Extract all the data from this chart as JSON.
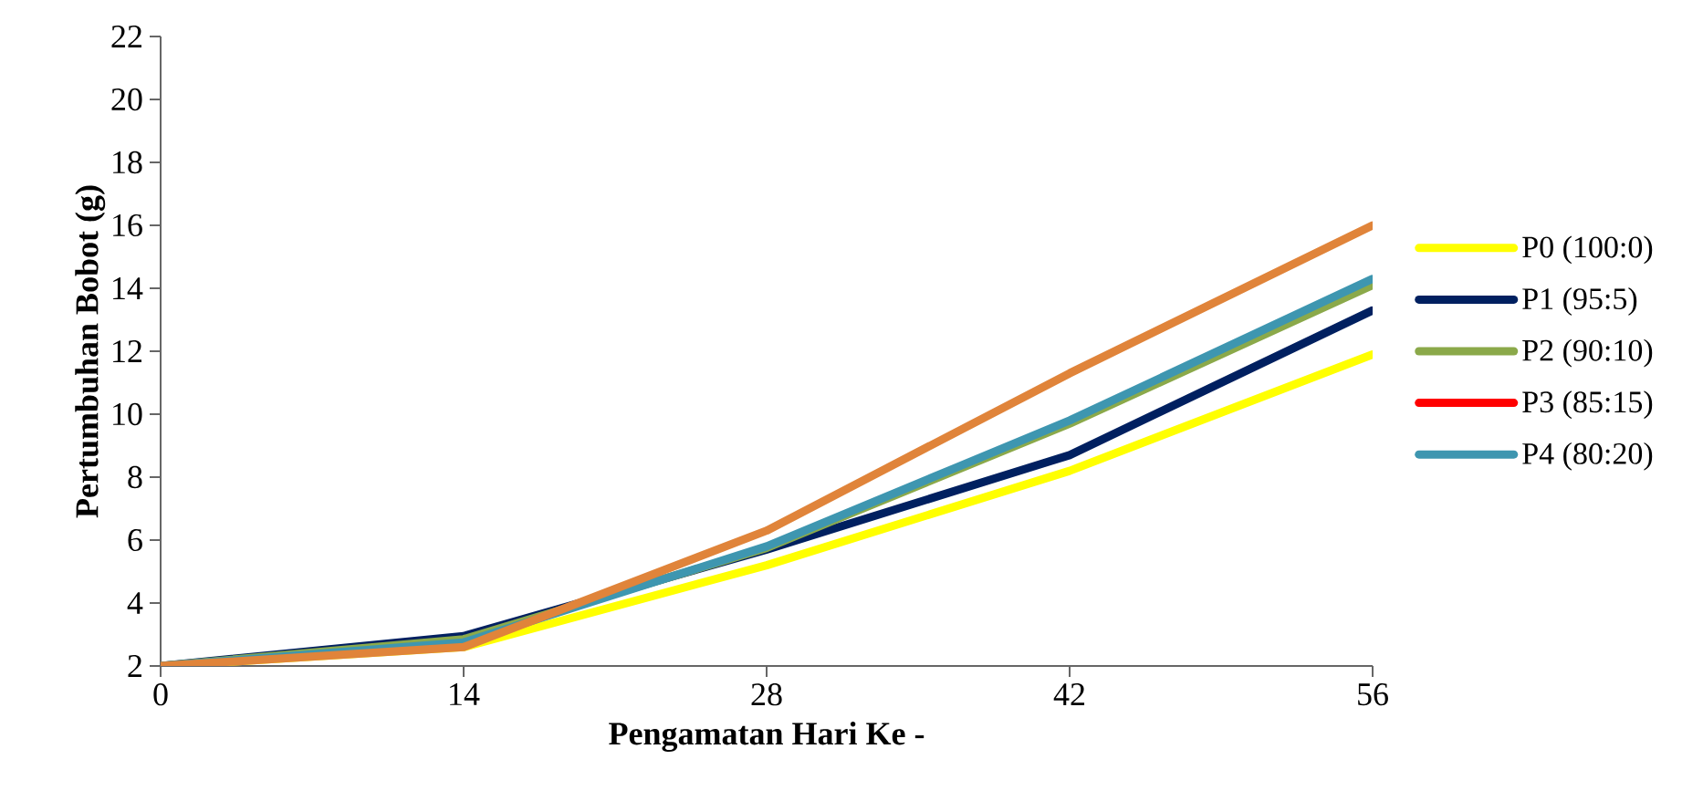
{
  "chart_data": {
    "type": "line",
    "xlabel": "Pengamatan Hari Ke -",
    "ylabel": "Pertumbuhan Bobot (g)",
    "x": [
      0,
      14,
      28,
      42,
      56
    ],
    "xlim": [
      0,
      56
    ],
    "xticks": [
      0,
      14,
      28,
      42,
      56
    ],
    "ylim": [
      2,
      22
    ],
    "yticks": [
      2,
      4,
      6,
      8,
      10,
      12,
      14,
      16,
      18,
      20,
      22
    ],
    "legend": "right",
    "grid": false,
    "marker": "none",
    "line_style": "solid",
    "series": [
      {
        "name": "P0 (100:0)",
        "color": "#ffff00",
        "values": [
          2,
          2.6,
          5.2,
          8.2,
          11.9
        ]
      },
      {
        "name": "P1 (95:5)",
        "color": "#002060",
        "values": [
          2,
          2.95,
          5.7,
          8.7,
          13.3
        ]
      },
      {
        "name": "P2 (90:10)",
        "color": "#8ba94a",
        "values": [
          2,
          2.85,
          5.75,
          9.7,
          14.1
        ]
      },
      {
        "name": "P3 (85:15)",
        "color": "#ff0000",
        "values": [
          null,
          null,
          null,
          null,
          null
        ]
      },
      {
        "name": "P4 (80:20)",
        "color": "#3e96b0",
        "values": [
          2,
          2.75,
          5.8,
          9.8,
          14.3
        ]
      },
      {
        "color": "#e0843a",
        "values": [
          2,
          2.6,
          6.3,
          11.3,
          16.0
        ]
      }
    ]
  }
}
